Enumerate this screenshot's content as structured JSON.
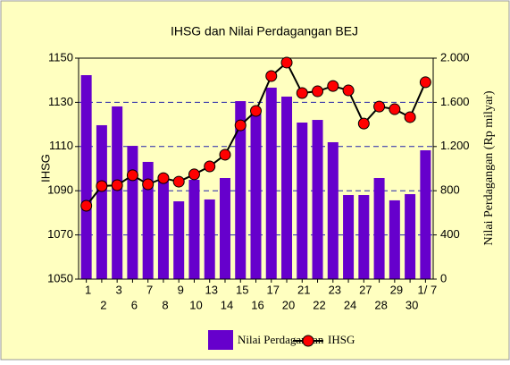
{
  "chart_data": {
    "type": "bar_line",
    "title": "IHSG dan Nilai Perdagangan BEJ",
    "ylabel": "IHSG",
    "y2label": "Nilai Perdagangan (Rp milyar)",
    "categories": [
      "1",
      "2",
      "3",
      "6",
      "7",
      "8",
      "9",
      "10",
      "13",
      "14",
      "15",
      "16",
      "17",
      "20",
      "21",
      "22",
      "23",
      "24",
      "27",
      "28",
      "29",
      "30",
      "1/ 7"
    ],
    "series": [
      {
        "name": "Nilai Perdagangan",
        "type": "bar",
        "axis": "y2",
        "color": "#6600cc",
        "values": [
          1846,
          1393,
          1563,
          1206,
          1061,
          939,
          704,
          899,
          721,
          915,
          1611,
          1506,
          1733,
          1652,
          1417,
          1441,
          1239,
          761,
          761,
          915,
          713,
          769,
          1166
        ]
      },
      {
        "name": "IHSG",
        "type": "line",
        "color": "#000000",
        "marker_color": "#ff0000",
        "values": [
          1083.2,
          1092.1,
          1092.5,
          1097,
          1092.9,
          1095.7,
          1094.1,
          1097.4,
          1101,
          1106.3,
          1119.6,
          1126.1,
          1141.9,
          1148,
          1134.2,
          1135,
          1137.4,
          1135.4,
          1120.4,
          1128.1,
          1126.9,
          1123.3,
          1139.1
        ]
      }
    ],
    "ylim": [
      1050,
      1150
    ],
    "yticks": [
      1050,
      1070,
      1090,
      1110,
      1130,
      1150
    ],
    "y2lim": [
      0,
      2000
    ],
    "y2ticks": [
      0,
      400,
      800,
      {
        "value": 1200,
        "label": "1.200"
      },
      {
        "value": 1600,
        "label": "1.600"
      },
      {
        "value": 2000,
        "label": "2.000"
      }
    ],
    "grid": true,
    "legend": "bottom"
  }
}
